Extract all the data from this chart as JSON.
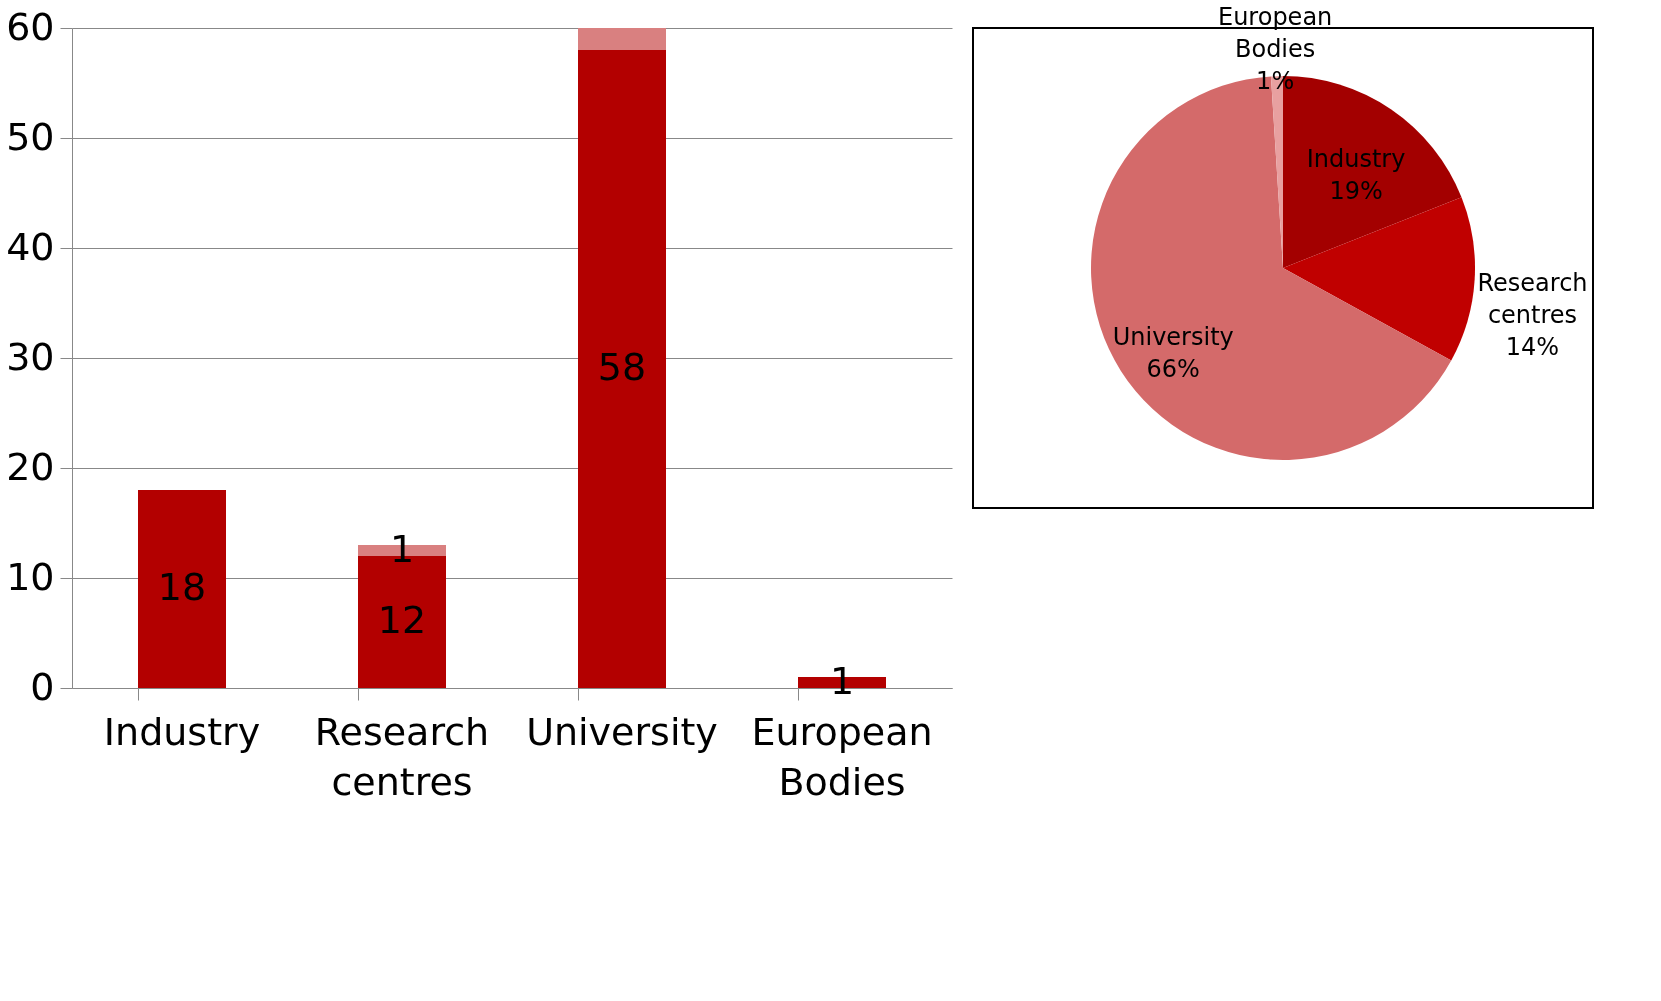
{
  "chart_data": [
    {
      "type": "bar",
      "stacked": true,
      "categories": [
        "Industry",
        "Research centres",
        "University",
        "European Bodies"
      ],
      "series": [
        {
          "color": "#b30000",
          "values": [
            18,
            12,
            58,
            1
          ],
          "value_labels": [
            "18",
            "12",
            "58",
            "1"
          ]
        },
        {
          "color": "#d98080",
          "values": [
            null,
            1,
            2,
            null
          ],
          "value_labels": [
            null,
            "1",
            null,
            null
          ]
        }
      ],
      "ylim": [
        0,
        60
      ],
      "yticks": [
        0,
        10,
        20,
        30,
        40,
        50,
        60
      ],
      "grid": "y"
    },
    {
      "type": "pie",
      "categories": [
        "Industry",
        "Research centres",
        "University",
        "European Bodies"
      ],
      "values": [
        19,
        14,
        66,
        1
      ],
      "colors": [
        "#a30000",
        "#c00000",
        "#d46a6a",
        "#e8a0a0"
      ],
      "value_labels": [
        "19%",
        "14%",
        "66%",
        "1%"
      ]
    }
  ]
}
